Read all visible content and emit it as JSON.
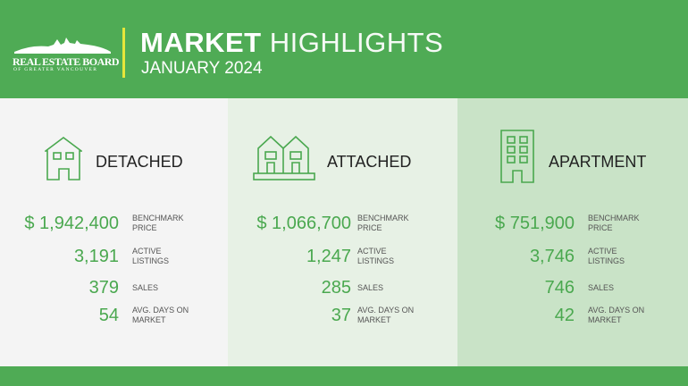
{
  "header": {
    "logo_line1": "REAL ESTATE BOARD",
    "logo_line2": "OF GREATER VANCOUVER",
    "title_bold": "MARKET",
    "title_light": "HIGHLIGHTS",
    "subtitle": "JANUARY 2024"
  },
  "colors": {
    "brand_green": "#4fab55",
    "accent_yellow": "#e6e63a",
    "value_green": "#4aa84f"
  },
  "categories": [
    {
      "name": "DETACHED",
      "icon": "house-icon",
      "stats": [
        {
          "value": "$ 1,942,400",
          "label_1": "BENCHMARK",
          "label_2": "PRICE"
        },
        {
          "value": "3,191",
          "label_1": "ACTIVE",
          "label_2": "LISTINGS"
        },
        {
          "value": "379",
          "label_1": "SALES",
          "label_2": ""
        },
        {
          "value": "54",
          "label_1": "AVG. DAYS ON",
          "label_2": "MARKET"
        }
      ]
    },
    {
      "name": "ATTACHED",
      "icon": "townhouse-icon",
      "stats": [
        {
          "value": "$ 1,066,700",
          "label_1": "BENCHMARK",
          "label_2": "PRICE"
        },
        {
          "value": "1,247",
          "label_1": "ACTIVE",
          "label_2": "LISTINGS"
        },
        {
          "value": "285",
          "label_1": "SALES",
          "label_2": ""
        },
        {
          "value": "37",
          "label_1": "AVG. DAYS ON",
          "label_2": "MARKET"
        }
      ]
    },
    {
      "name": "APARTMENT",
      "icon": "apartment-building-icon",
      "stats": [
        {
          "value": "$ 751,900",
          "label_1": "BENCHMARK",
          "label_2": "PRICE"
        },
        {
          "value": "3,746",
          "label_1": "ACTIVE",
          "label_2": "LISTINGS"
        },
        {
          "value": "746",
          "label_1": "SALES",
          "label_2": ""
        },
        {
          "value": "42",
          "label_1": "AVG. DAYS ON",
          "label_2": "MARKET"
        }
      ]
    }
  ]
}
